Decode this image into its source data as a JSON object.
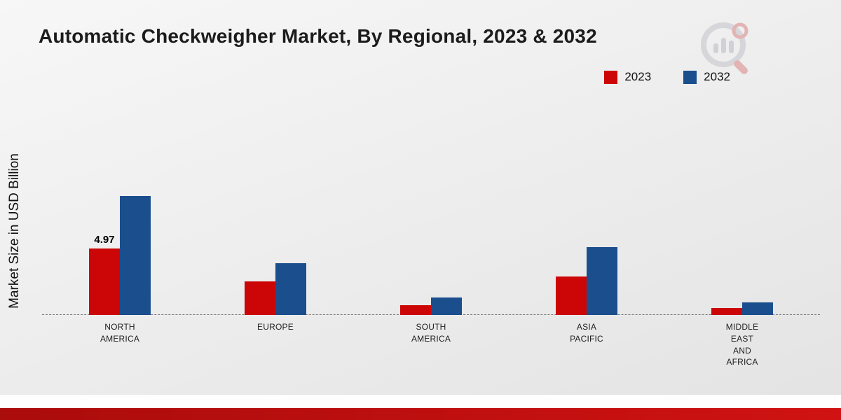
{
  "title": "Automatic Checkweigher Market, By Regional, 2023 & 2032",
  "ylabel": "Market Size in USD Billion",
  "chart_data": {
    "type": "bar",
    "title": "Automatic Checkweigher Market, By Regional, 2023 & 2032",
    "xlabel": "",
    "ylabel": "Market Size in USD Billion",
    "categories": [
      "NORTH AMERICA",
      "EUROPE",
      "SOUTH AMERICA",
      "ASIA PACIFIC",
      "MIDDLE EAST AND AFRICA"
    ],
    "series": [
      {
        "name": "2023",
        "color": "#cc0606",
        "values": [
          4.97,
          2.5,
          0.75,
          2.9,
          0.5
        ]
      },
      {
        "name": "2032",
        "color": "#1b4e8d",
        "values": [
          8.9,
          3.9,
          1.3,
          5.1,
          0.95
        ]
      }
    ],
    "bar_label": {
      "series": "2023",
      "category": "NORTH AMERICA",
      "value": "4.97"
    },
    "ylim": [
      0,
      10
    ],
    "grid": false,
    "baseline": "dashed",
    "legend_position": "top-right"
  }
}
